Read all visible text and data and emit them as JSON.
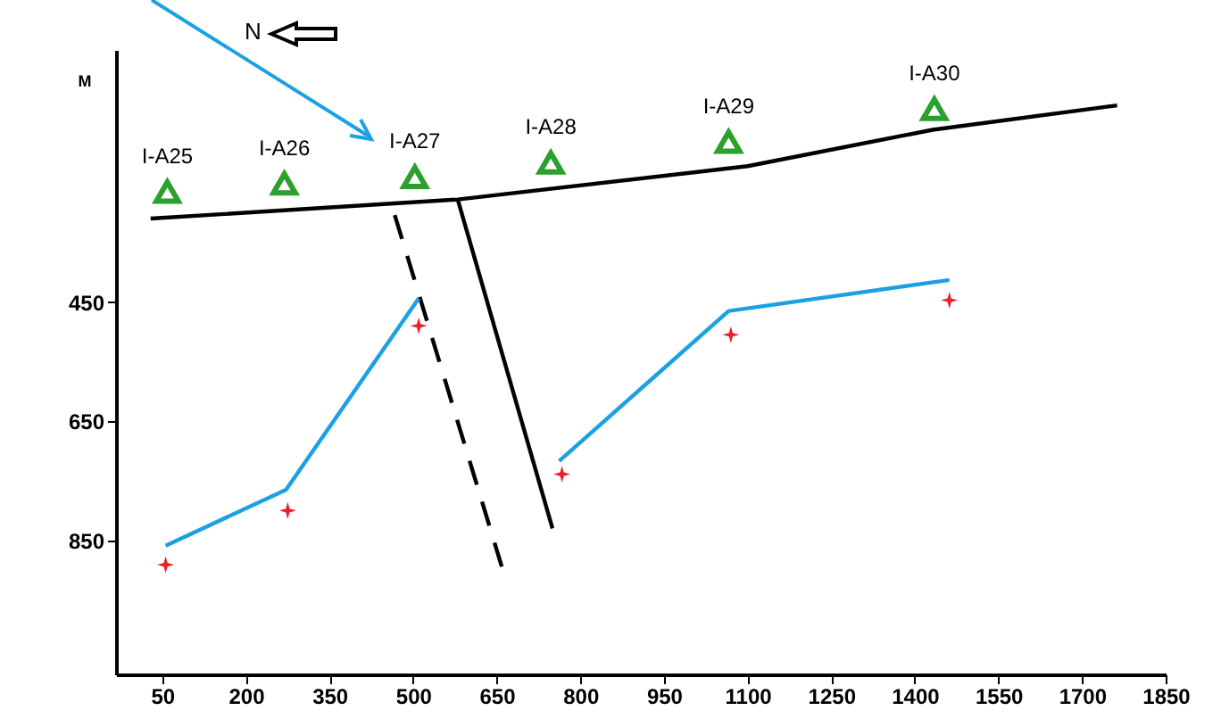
{
  "chart_data": {
    "type": "line",
    "ylabel": "M",
    "xlim": [
      -33,
      1850
    ],
    "xticks": [
      50,
      200,
      350,
      500,
      650,
      800,
      950,
      1100,
      1250,
      1400,
      1550,
      1700,
      1850
    ],
    "ylim": [
      1075,
      27
    ],
    "yticks": [
      450,
      650,
      850
    ],
    "series": [
      {
        "color": "#000000",
        "x": [
          29,
          580,
          1100,
          1432,
          1763
        ],
        "values": [
          310,
          278,
          222,
          161,
          120
        ]
      },
      {
        "type": "scatter",
        "marker": "triangle",
        "color": "#2ca02c",
        "x": [
          59,
          269,
          503,
          747,
          1066,
          1435
        ],
        "values": [
          265,
          251,
          240,
          216,
          181,
          126
        ]
      },
      {
        "color": "#000000",
        "x": [
          580,
          750
        ],
        "values": [
          278,
          830
        ]
      },
      {
        "color": "#000000",
        "line_style": "dashed",
        "x": [
          467,
          659
        ],
        "values": [
          304,
          894
        ]
      },
      {
        "color": "#1ba1e2",
        "x": [
          56,
          272,
          510,
          640,
          762,
          1066,
          1462
        ],
        "values": [
          859,
          765,
          444,
          null,
          717,
          465,
          413
        ]
      },
      {
        "type": "scatter",
        "marker": "star",
        "color": "#e8202a",
        "x": [
          56,
          275,
          510,
          767,
          1070,
          1462
        ],
        "values": [
          891,
          800,
          490,
          739,
          505,
          447
        ]
      }
    ],
    "annotations": [
      "N",
      {
        "text": "I-A25",
        "x": 59,
        "y": 265
      },
      {
        "text": "I-A26",
        "x": 269,
        "y": 251
      },
      {
        "text": "I-A27",
        "x": 503,
        "y": 240
      },
      {
        "text": "I-A28",
        "x": 747,
        "y": 216
      },
      {
        "text": "I-A29",
        "x": 1066,
        "y": 181
      },
      {
        "text": "I-A30",
        "x": 1435,
        "y": 126
      }
    ]
  }
}
